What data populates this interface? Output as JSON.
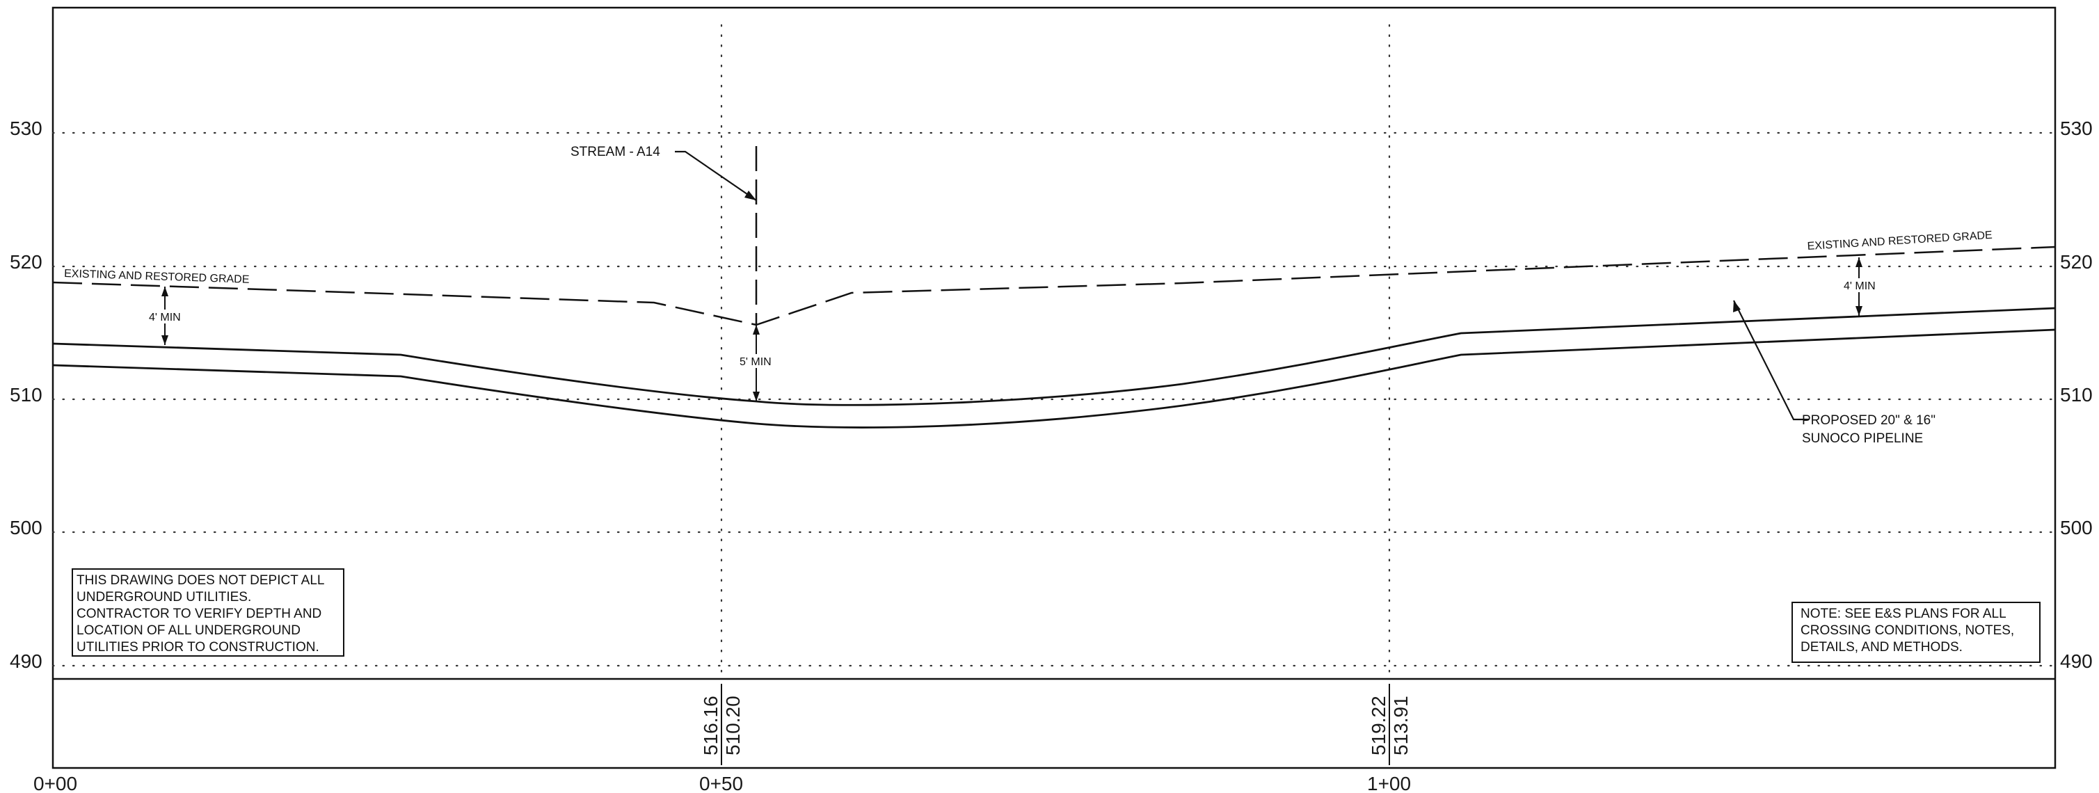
{
  "axes": {
    "elevations": [
      "530",
      "520",
      "510",
      "500",
      "490"
    ],
    "stations": [
      "0+00",
      "0+50",
      "1+00"
    ]
  },
  "labels": {
    "stream": "STREAM - A14",
    "grade_left": "EXISTING  AND RESTORED GRADE",
    "grade_right": "EXISTING AND RESTORED  GRADE",
    "min_4_left": "4' MIN",
    "min_4_right": "4' MIN",
    "min_5": "5' MIN",
    "pipeline_line1": "PROPOSED 20\" & 16\"",
    "pipeline_line2": "SUNOCO PIPELINE"
  },
  "disclaimer": {
    "lines": [
      "THIS DRAWING DOES NOT DEPICT ALL",
      "UNDERGROUND UTILITIES.",
      "CONTRACTOR TO VERIFY DEPTH AND",
      "LOCATION OF ALL UNDERGROUND",
      "UTILITIES  PRIOR TO CONSTRUCTION."
    ]
  },
  "note": {
    "lines": [
      "NOTE: SEE E&S PLANS FOR ALL",
      "CROSSING CONDITIONS, NOTES,",
      "DETAILS, AND METHODS."
    ]
  },
  "band": {
    "col_050": {
      "ground": "516.16",
      "pipe": "510.20"
    },
    "col_100": {
      "ground": "519.22",
      "pipe": "513.91"
    }
  },
  "colors": {
    "line": "#111111",
    "grid": "#333333"
  }
}
